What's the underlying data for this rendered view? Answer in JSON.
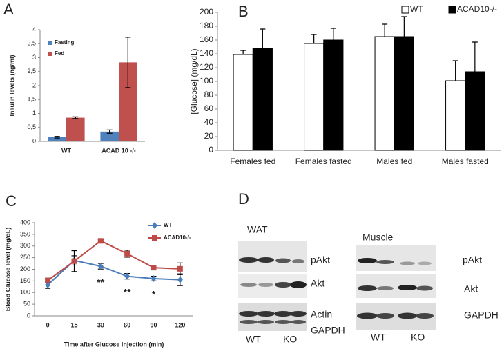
{
  "chart_data": [
    {
      "type": "bar",
      "label": "A",
      "ylabel": "Insulin levels (ng/ml)",
      "categories": [
        "WT",
        "ACAD 10 -/-"
      ],
      "series": [
        {
          "name": "Fasting",
          "color": "#4f81bd",
          "values": [
            0.15,
            0.35
          ],
          "errors": [
            0.03,
            0.06
          ]
        },
        {
          "name": "Fed",
          "color": "#c0504d",
          "values": [
            0.85,
            2.83
          ],
          "errors": [
            0.03,
            0.9
          ]
        }
      ],
      "ylim": [
        0,
        4
      ],
      "yticks": [
        0,
        {
          "value": 0.5,
          "label": "0,5"
        },
        1,
        {
          "value": 1.5,
          "label": "1,5"
        },
        2,
        {
          "value": 2.5,
          "label": "2,5"
        },
        3,
        {
          "value": 3.5,
          "label": "3,5"
        },
        4
      ],
      "legend": "top-left",
      "error_direction": "both"
    },
    {
      "type": "bar",
      "label": "B",
      "ylabel": "[Glucose] (mg/dL)",
      "categories": [
        "Females fed",
        "Females fasted",
        "Males fed",
        "Males fasted"
      ],
      "series": [
        {
          "name": "WT",
          "color": "#ffffff",
          "values": [
            139,
            155,
            165,
            101
          ],
          "errors": [
            6,
            13,
            18,
            29
          ]
        },
        {
          "name": "ACAD10-/-",
          "color": "#000000",
          "values": [
            148,
            160,
            165,
            114
          ],
          "errors": [
            28,
            17,
            29,
            43
          ]
        }
      ],
      "ylim": [
        0,
        200
      ],
      "yticks": [
        0,
        20,
        40,
        60,
        80,
        100,
        120,
        140,
        160,
        180,
        200
      ],
      "legend": "top-right",
      "error_direction": "up"
    },
    {
      "type": "line",
      "label": "C",
      "xlabel": "Time after Glucose Injection (min)",
      "ylabel": "Blood Glucose level (mg/dL)",
      "categories": [
        "0",
        "15",
        "30",
        "60",
        "90",
        "120"
      ],
      "series": [
        {
          "name": "WT",
          "color": "#4a7ebb",
          "marker": "diamond",
          "values": [
            133,
            238,
            213,
            170,
            160,
            155
          ],
          "errors": [
            15,
            20,
            12,
            12,
            10,
            25
          ]
        },
        {
          "name": "ACAD10-/-",
          "color": "#be4b48",
          "marker": "square",
          "values": [
            152,
            235,
            322,
            267,
            207,
            202
          ],
          "errors": [
            10,
            45,
            5,
            15,
            8,
            25
          ]
        }
      ],
      "ylim": [
        0,
        400
      ],
      "yticks": [
        0,
        50,
        100,
        150,
        200,
        250,
        300,
        350,
        400
      ],
      "annotations": [
        {
          "text": "**",
          "x": "30"
        },
        {
          "text": "**",
          "x": "60"
        },
        {
          "text": "*",
          "x": "90"
        }
      ],
      "legend": "top-right",
      "error_direction": "both"
    }
  ],
  "western_blot": {
    "label": "D",
    "panels": [
      {
        "title": "WAT",
        "rows": [
          "pAkt",
          "Akt",
          "Actin",
          "GAPDH"
        ],
        "lanes": [
          "WT",
          "KO"
        ]
      },
      {
        "title": "Muscle",
        "rows": [
          "pAkt",
          "Akt",
          "GAPDH"
        ],
        "lanes": [
          "WT",
          "KO"
        ]
      }
    ]
  }
}
